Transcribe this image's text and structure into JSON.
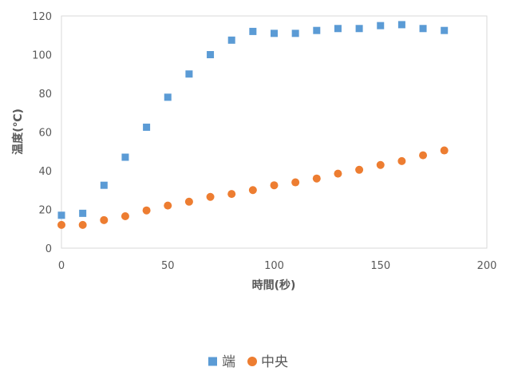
{
  "chart_data": {
    "type": "scatter",
    "xlabel": "時間(秒)",
    "ylabel": "温度(℃)",
    "xlim": [
      0,
      200
    ],
    "ylim": [
      0,
      120
    ],
    "xticks": [
      0,
      50,
      100,
      150,
      200
    ],
    "yticks": [
      0,
      20,
      40,
      60,
      80,
      100,
      120
    ],
    "grid": false,
    "legend_position": "bottom",
    "series": [
      {
        "name": "端",
        "color": "#5b9bd5",
        "marker": "square",
        "x": [
          0,
          10,
          20,
          30,
          40,
          50,
          60,
          70,
          80,
          90,
          100,
          110,
          120,
          130,
          140,
          150,
          160,
          170,
          180
        ],
        "y": [
          17,
          18,
          32.5,
          47,
          62.5,
          78,
          90,
          100,
          107.5,
          112,
          111,
          111,
          112.5,
          113.5,
          113.5,
          115,
          115.5,
          113.5,
          112.5
        ]
      },
      {
        "name": "中央",
        "color": "#ed7d31",
        "marker": "circle",
        "x": [
          0,
          10,
          20,
          30,
          40,
          50,
          60,
          70,
          80,
          90,
          100,
          110,
          120,
          130,
          140,
          150,
          160,
          170,
          180
        ],
        "y": [
          12,
          12,
          14.5,
          16.5,
          19.5,
          22,
          24,
          26.5,
          28,
          30,
          32.5,
          34,
          36,
          38.5,
          40.5,
          43,
          45,
          48,
          50.5
        ]
      }
    ]
  }
}
